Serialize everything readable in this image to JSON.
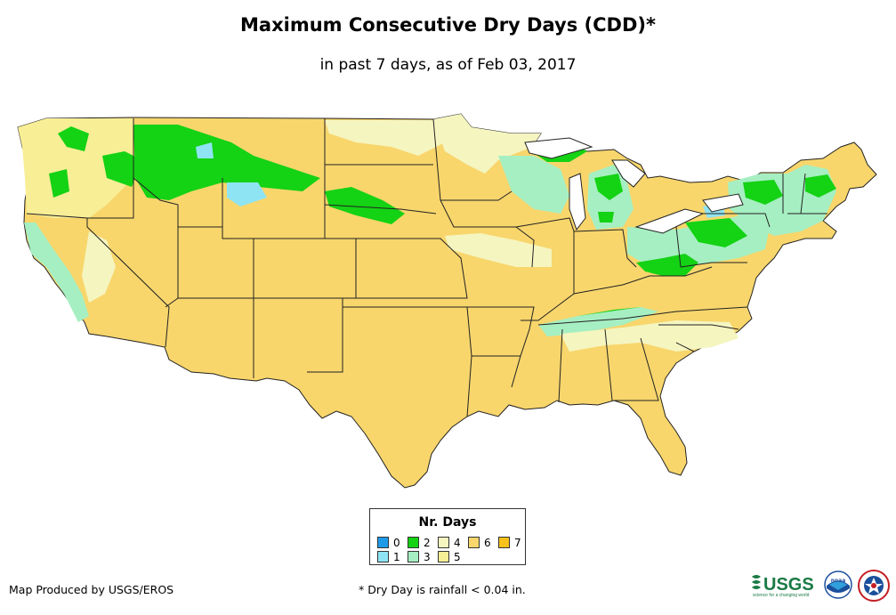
{
  "title": "Maximum Consecutive Dry Days (CDD)*",
  "subtitle": "in past 7 days, as of Feb 03, 2017",
  "legend": {
    "title": "Nr. Days",
    "items": [
      {
        "label": "0",
        "color": "#1e9be8"
      },
      {
        "label": "1",
        "color": "#8fe4f4"
      },
      {
        "label": "2",
        "color": "#14d214"
      },
      {
        "label": "3",
        "color": "#a6efc2"
      },
      {
        "label": "4",
        "color": "#f5f5c0"
      },
      {
        "label": "5",
        "color": "#f8ee96"
      },
      {
        "label": "6",
        "color": "#f8d66c"
      },
      {
        "label": "7",
        "color": "#f7c21c"
      }
    ]
  },
  "credit": "Map Produced by USGS/EROS",
  "footnote": "* Dry Day is rainfall < 0.04 in.",
  "logos": {
    "usgs": "USGS",
    "usgs_tagline": "science for a changing world",
    "noaa": "noaa",
    "nws": "NATIONAL WEATHER SERVICE"
  },
  "map": {
    "base_color": "#f8d66c",
    "state_border_color": "#222222"
  }
}
